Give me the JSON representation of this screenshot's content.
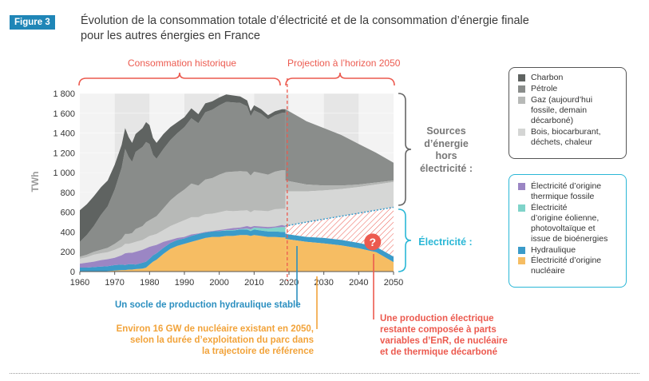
{
  "figure_badge": "Figure 3",
  "title_line1": "Évolution de la consommation totale d’électricité et de la consommation d’énergie finale",
  "title_line2": "pour les autres énergies en France",
  "colors": {
    "charbon": "#5f6361",
    "petrole": "#898c8a",
    "gaz": "#b7b9b7",
    "bois": "#d4d5d4",
    "thermique": "#9b86c4",
    "eolien": "#7fd3c9",
    "hydraulique": "#3b9bc9",
    "nucleaire": "#f6bd63",
    "accent_blue": "#2ab7d6",
    "accent_red": "#ec5a4f",
    "accent_orange": "#f2a33a",
    "annot_blue": "#2b8fc0"
  },
  "chart_data": {
    "type": "area",
    "ylabel": "TWh",
    "ylim": [
      0,
      1800
    ],
    "xlim": [
      1960,
      2050
    ],
    "yticks": [
      "0",
      "200",
      "400",
      "600",
      "800",
      "1 000",
      "1 200",
      "1 400",
      "1 600",
      "1 800"
    ],
    "xticks": [
      "1960",
      "1970",
      "1980",
      "1990",
      "2000",
      "2010",
      "2020",
      "2030",
      "2040",
      "2050"
    ],
    "historical_years": [
      1960,
      1962,
      1964,
      1966,
      1968,
      1970,
      1972,
      1973,
      1974,
      1975,
      1976,
      1978,
      1979,
      1980,
      1981,
      1982,
      1984,
      1986,
      1988,
      1990,
      1992,
      1994,
      1996,
      1998,
      2000,
      2002,
      2004,
      2006,
      2008,
      2009,
      2010,
      2012,
      2014,
      2016,
      2018,
      2019
    ],
    "total_energy": [
      620,
      680,
      760,
      850,
      920,
      1080,
      1280,
      1450,
      1360,
      1300,
      1390,
      1450,
      1510,
      1480,
      1350,
      1300,
      1390,
      1460,
      1510,
      1560,
      1650,
      1590,
      1700,
      1720,
      1760,
      1790,
      1780,
      1770,
      1730,
      1620,
      1680,
      1640,
      1580,
      1620,
      1640,
      1640
    ],
    "electricity_historical": [
      80,
      90,
      100,
      115,
      125,
      140,
      165,
      185,
      190,
      190,
      200,
      220,
      235,
      250,
      260,
      270,
      300,
      320,
      340,
      350,
      375,
      385,
      400,
      410,
      420,
      430,
      440,
      445,
      460,
      450,
      460,
      455,
      450,
      455,
      460,
      460
    ],
    "series_historical": [
      {
        "name": "Charbon",
        "values": [
          320,
          310,
          300,
          280,
          260,
          250,
          230,
          210,
          200,
          190,
          180,
          190,
          200,
          190,
          170,
          160,
          150,
          130,
          110,
          100,
          100,
          90,
          90,
          85,
          80,
          75,
          70,
          65,
          60,
          50,
          50,
          45,
          40,
          40,
          35,
          35
        ]
      },
      {
        "name": "Pétrole",
        "values": [
          150,
          200,
          260,
          350,
          420,
          550,
          720,
          860,
          780,
          720,
          780,
          800,
          810,
          770,
          640,
          580,
          600,
          610,
          620,
          630,
          660,
          630,
          680,
          690,
          700,
          710,
          700,
          690,
          660,
          600,
          620,
          600,
          560,
          570,
          580,
          580
        ]
      },
      {
        "name": "Gaz (aujourd’hui fossile, demain décarboné)",
        "values": [
          20,
          25,
          30,
          35,
          45,
          60,
          80,
          100,
          100,
          100,
          130,
          140,
          160,
          160,
          170,
          180,
          220,
          260,
          290,
          310,
          340,
          320,
          350,
          360,
          380,
          390,
          400,
          400,
          390,
          370,
          390,
          380,
          370,
          380,
          390,
          390
        ]
      },
      {
        "name": "Bois, biocarburant, déchets, chaleur",
        "values": [
          50,
          55,
          70,
          70,
          70,
          80,
          85,
          95,
          90,
          100,
          100,
          100,
          105,
          110,
          110,
          110,
          120,
          140,
          150,
          170,
          175,
          165,
          180,
          175,
          180,
          185,
          170,
          170,
          160,
          150,
          160,
          160,
          160,
          175,
          175,
          175
        ]
      }
    ],
    "electricity_historical_split": [
      {
        "name": "Électricité d’origine nucléaire",
        "values": [
          0,
          0,
          0,
          0,
          5,
          10,
          15,
          15,
          20,
          20,
          25,
          30,
          40,
          70,
          100,
          120,
          180,
          230,
          260,
          280,
          300,
          320,
          340,
          350,
          350,
          360,
          360,
          370,
          370,
          360,
          370,
          360,
          350,
          350,
          345,
          345
        ]
      },
      {
        "name": "Hydraulique",
        "values": [
          40,
          40,
          45,
          50,
          50,
          55,
          55,
          50,
          55,
          55,
          45,
          60,
          60,
          60,
          65,
          65,
          60,
          60,
          60,
          55,
          60,
          60,
          55,
          55,
          60,
          55,
          55,
          55,
          55,
          50,
          55,
          55,
          55,
          55,
          55,
          55
        ]
      },
      {
        "name": "Électricité d’origine éolienne, photovoltaïque et issue de bioénergies",
        "values": [
          0,
          0,
          0,
          0,
          0,
          0,
          0,
          0,
          0,
          0,
          0,
          0,
          0,
          0,
          0,
          0,
          0,
          0,
          0,
          0,
          0,
          0,
          0,
          0,
          0,
          5,
          5,
          5,
          10,
          15,
          20,
          25,
          30,
          40,
          50,
          50
        ]
      },
      {
        "name": "Électricité d’origine thermique fossile",
        "values": [
          40,
          50,
          55,
          65,
          70,
          75,
          95,
          120,
          115,
          115,
          130,
          130,
          135,
          120,
          95,
          85,
          60,
          30,
          20,
          15,
          15,
          5,
          5,
          5,
          10,
          10,
          20,
          15,
          25,
          25,
          15,
          15,
          15,
          10,
          20,
          10
        ]
      }
    ],
    "projection_years": [
      2019,
      2025,
      2030,
      2035,
      2040,
      2045,
      2050
    ],
    "projection_total_energy": [
      1640,
      1520,
      1450,
      1380,
      1290,
      1200,
      1100
    ],
    "projection_fossil_upper_gray": [
      920,
      880,
      870,
      870,
      880,
      900,
      920
    ],
    "projection_electricity_total": [
      460,
      500,
      530,
      560,
      590,
      620,
      650
    ],
    "projection_hydraulique_top": [
      380,
      350,
      340,
      320,
      290,
      250,
      150
    ],
    "projection_nucleaire": [
      330,
      300,
      285,
      265,
      235,
      195,
      95
    ],
    "projection_nuclear_label_value_2050": "Environ 16 GW",
    "legend_position": "right"
  },
  "periods": {
    "historical": "Consommation historique",
    "projection": "Projection à l’horizon 2050"
  },
  "legend_top": [
    {
      "name": "Charbon",
      "color_key": "charbon"
    },
    {
      "name": "Pétrole",
      "color_key": "petrole"
    },
    {
      "name": "Gaz (aujourd’hui\nfossile, demain\ndécarboné)",
      "color_key": "gaz"
    },
    {
      "name": "Bois, biocarburant,\ndéchets, chaleur",
      "color_key": "bois"
    }
  ],
  "legend_bottom": [
    {
      "name": "Électricité d’origine\nthermique fossile",
      "color_key": "thermique"
    },
    {
      "name": "Électricité\nd’origine éolienne,\nphotovoltaïque et\nissue de bioénergies",
      "color_key": "eolien"
    },
    {
      "name": "Hydraulique",
      "color_key": "hydraulique"
    },
    {
      "name": "Électricité d’origine\nnucléaire",
      "color_key": "nucleaire"
    }
  ],
  "side_labels": {
    "sources": "Sources\nd’énergie\nhors\nélectricité :",
    "electricite": "Électricité :"
  },
  "annotations": {
    "hydro": "Un socle de production hydraulique stable",
    "nuclear": "Environ 16 GW de nucléaire existant en 2050,\nselon la durée d’exploitation du parc dans\nla trajectoire de référence",
    "residual": "Une production électrique\nrestante composée à parts\nvariables d’EnR, de nucléaire\net de thermique décarboné",
    "question_mark": "?"
  }
}
